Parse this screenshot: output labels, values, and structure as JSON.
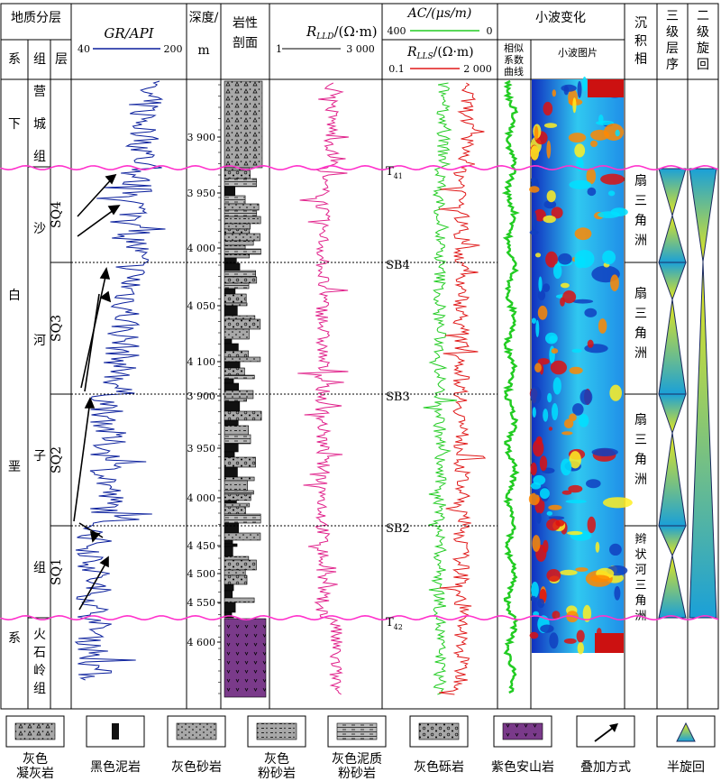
{
  "header": {
    "strat_title": "地质分层",
    "sys_col": "系",
    "grp_col": "组",
    "layer_col": "层",
    "gr_title": "GR/API",
    "gr_min": "40",
    "gr_max": "200",
    "depth_title_1": "深度/",
    "depth_title_2": "m",
    "litho_title_1": "岩性",
    "litho_title_2": "剖面",
    "rlld_title": "R",
    "rlld_sub": "LLD",
    "rlld_unit": "/(Ω·m)",
    "rlld_min": "1",
    "rlld_max": "3 000",
    "ac_title": "AC/(μs/m)",
    "ac_min": "400",
    "ac_max": "0",
    "rlls_title": "R",
    "rlls_sub": "LLS",
    "rlls_unit": "/(Ω·m)",
    "rlls_min": "0.1",
    "rlls_max": "2 000",
    "wavelet_title": "小波变化",
    "wavelet_coef_1": "相似",
    "wavelet_coef_2": "系数",
    "wavelet_coef_3": "曲线",
    "wavelet_img": "小波图片",
    "facies_1": "沉",
    "facies_2": "积",
    "facies_3": "相",
    "seq3_1": "三",
    "seq3_2": "级",
    "seq3_3": "层",
    "seq3_4": "序",
    "seq2_1": "二",
    "seq2_2": "级",
    "seq2_3": "旋",
    "seq2_4": "回"
  },
  "strat": {
    "system_chars": [
      "下",
      "白",
      "垩",
      "系"
    ],
    "group_upper": [
      "营",
      "城",
      "组"
    ],
    "group_main": [
      "沙",
      "河",
      "子",
      "组"
    ],
    "group_lower": [
      "火",
      "石",
      "岭",
      "组"
    ],
    "layers": [
      "SQ4",
      "SQ3",
      "SQ2",
      "SQ1"
    ]
  },
  "depth_ticks": [
    "3 900",
    "3 950",
    "4 000",
    "4 050",
    "4 100",
    "3 900",
    "3 950",
    "4 000",
    "4 450",
    "4 500",
    "4 550",
    "4 600"
  ],
  "boundaries": {
    "t41": "T",
    "t41_sub": "41",
    "sb4": "SB4",
    "sb3": "SB3",
    "sb2": "SB2",
    "t42": "T",
    "t42_sub": "42"
  },
  "facies": [
    [
      "扇",
      "三",
      "角",
      "洲"
    ],
    [
      "扇",
      "三",
      "角",
      "洲"
    ],
    [
      "扇",
      "三",
      "角",
      "洲"
    ],
    [
      "辫",
      "状",
      "河",
      "三",
      "角",
      "洲"
    ]
  ],
  "legend": [
    {
      "label": "灰色\n凝灰岩",
      "icon": "tuff-pattern-icon"
    },
    {
      "label": "黑色泥岩",
      "icon": "black-mudstone-icon"
    },
    {
      "label": "灰色砂岩",
      "icon": "gray-sandstone-icon"
    },
    {
      "label": "灰色\n粉砂岩",
      "icon": "gray-siltstone-icon"
    },
    {
      "label": "灰色泥质\n粉砂岩",
      "icon": "argillaceous-siltstone-icon"
    },
    {
      "label": "灰色砾岩",
      "icon": "gray-conglomerate-icon"
    },
    {
      "label": "紫色安山岩",
      "icon": "purple-andesite-icon"
    },
    {
      "label": "叠加方式",
      "icon": "stacking-arrow-icon"
    },
    {
      "label": "半旋回",
      "icon": "half-cycle-icon"
    }
  ],
  "colors": {
    "gr": "#0a1f9c",
    "rlld": "#e0208a",
    "ac": "#22cc22",
    "rlls": "#e01818",
    "boundary": "#ff33cc",
    "andesite": "#7a3a8a",
    "rock_gray": "#a8a8a8",
    "tri_yellow": "#e8e81a",
    "tri_blue": "#1aa0d8"
  }
}
